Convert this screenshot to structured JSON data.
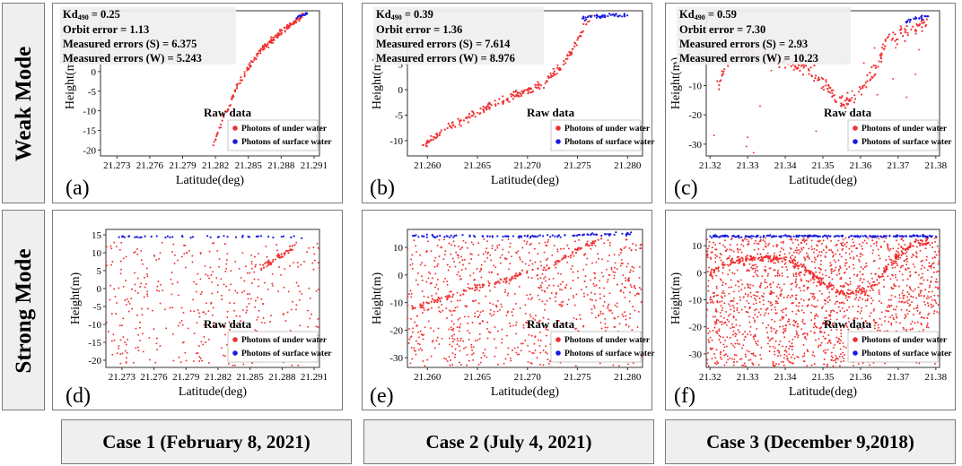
{
  "row_labels": [
    "Weak Mode",
    "Strong Mode"
  ],
  "case_labels": [
    "Case 1 (February  8, 2021)",
    "Case 2 (July 4, 2021)",
    "Case 3 (December 9,2018)"
  ],
  "colors": {
    "under_water": "#f03030",
    "surface_water": "#1a1adc",
    "frame": "#7a7a7a",
    "box_fill": "#efefef"
  },
  "chart_data": [
    {
      "type": "scatter",
      "panel_label": "(a)",
      "mode": "weak",
      "case": 1,
      "xlabel": "Latitude(deg)",
      "ylabel": "Height(m)",
      "xlim": [
        21.2715,
        21.2915
      ],
      "ylim": [
        -21.5,
        15.5
      ],
      "xticks": [
        "21.273",
        "21.276",
        "21.279",
        "21.282",
        "21.285",
        "21.288",
        "21.291"
      ],
      "yticks": [
        "-20",
        "-15",
        "-10",
        "-5",
        "0",
        "5"
      ],
      "stats": {
        "kd_label": "Kd",
        "kd_sub": "490",
        "kd_value": "= 0.25",
        "lines": [
          "Orbit error = 1.13",
          "Measured errors (S) = 6.375",
          "Measured errors (W) = 5.243"
        ]
      },
      "legend": {
        "title": "Raw data",
        "entries": [
          "Photons of under water",
          "Photons of surface water"
        ]
      },
      "under_water_path": [
        [
          21.2818,
          -19
        ],
        [
          21.2824,
          -14
        ],
        [
          21.2828,
          -11
        ],
        [
          21.2832,
          -9
        ],
        [
          21.2838,
          -5
        ],
        [
          21.2842,
          -3
        ],
        [
          21.2848,
          0
        ],
        [
          21.2856,
          3.5
        ],
        [
          21.2863,
          6
        ],
        [
          21.2872,
          8
        ],
        [
          21.288,
          10
        ],
        [
          21.2888,
          12
        ],
        [
          21.2896,
          13.5
        ],
        [
          21.2902,
          14.5
        ]
      ],
      "surface_path": [
        [
          21.2893,
          13.5
        ],
        [
          21.2898,
          14.2
        ],
        [
          21.2904,
          14.8
        ]
      ],
      "under_water_count": 180,
      "under_water_spread": 0.6,
      "surface_count": 18,
      "surface_spread": 0.3,
      "scattered_count": 0
    },
    {
      "type": "scatter",
      "panel_label": "(b)",
      "mode": "weak",
      "case": 2,
      "xlabel": "Latitude(deg)",
      "ylabel": "Height(m)",
      "xlim": [
        21.258,
        21.2815
      ],
      "ylim": [
        -13,
        15.5
      ],
      "xticks": [
        "21.260",
        "21.265",
        "21.270",
        "21.275",
        "21.280"
      ],
      "yticks": [
        "-10",
        "-5",
        "0",
        "5"
      ],
      "stats": {
        "kd_label": "Kd",
        "kd_sub": "490",
        "kd_value": "= 0.39",
        "lines": [
          "Orbit error = 1.36",
          "Measured errors (S) = 7.614",
          "Measured errors (W) = 8.976"
        ]
      },
      "legend": {
        "title": "Raw data",
        "entries": [
          "Photons of under water",
          "Photons of surface water"
        ]
      },
      "under_water_path": [
        [
          21.2595,
          -11
        ],
        [
          21.261,
          -9
        ],
        [
          21.263,
          -6.5
        ],
        [
          21.265,
          -4.5
        ],
        [
          21.267,
          -2.5
        ],
        [
          21.269,
          -1
        ],
        [
          21.2705,
          0
        ],
        [
          21.272,
          2
        ],
        [
          21.2735,
          5
        ],
        [
          21.2748,
          9
        ],
        [
          21.2758,
          12.5
        ],
        [
          21.2765,
          14
        ]
      ],
      "surface_path": [
        [
          21.2755,
          14
        ],
        [
          21.277,
          14.5
        ],
        [
          21.279,
          14.6
        ],
        [
          21.28,
          14.5
        ]
      ],
      "under_water_count": 210,
      "under_water_spread": 0.7,
      "surface_count": 50,
      "surface_spread": 0.35,
      "scattered_count": 0
    },
    {
      "type": "scatter",
      "panel_label": "(c)",
      "mode": "weak",
      "case": 3,
      "xlabel": "Latitude(deg)",
      "ylabel": "Height(m)",
      "xlim": [
        21.319,
        21.381
      ],
      "ylim": [
        -34,
        15.5
      ],
      "xticks": [
        "21.32",
        "21.33",
        "21.34",
        "21.35",
        "21.36",
        "21.37",
        "21.38"
      ],
      "yticks": [
        "-30",
        "-20",
        "-10",
        "0"
      ],
      "stats": {
        "kd_label": "Kd",
        "kd_sub": "490",
        "kd_value": "= 0.59",
        "lines": [
          "Orbit error = 7.30",
          "Measured errors (S) = 2.93",
          "Measured errors (W) = 10.23"
        ]
      },
      "legend": {
        "title": "Raw data",
        "entries": [
          "Photons of under water",
          "Photons of surface water"
        ]
      },
      "under_water_path": [
        [
          21.322,
          -10
        ],
        [
          21.325,
          -2
        ],
        [
          21.33,
          1
        ],
        [
          21.335,
          0
        ],
        [
          21.34,
          -2
        ],
        [
          21.345,
          -4
        ],
        [
          21.35,
          -9
        ],
        [
          21.355,
          -16
        ],
        [
          21.358,
          -14
        ],
        [
          21.361,
          -10
        ],
        [
          21.364,
          -4
        ],
        [
          21.367,
          5
        ],
        [
          21.371,
          8
        ],
        [
          21.375,
          10
        ],
        [
          21.378,
          12
        ]
      ],
      "surface_path": [
        [
          21.372,
          12
        ],
        [
          21.375,
          13
        ],
        [
          21.378,
          13.5
        ]
      ],
      "under_water_count": 260,
      "under_water_spread": 2.2,
      "surface_count": 22,
      "surface_spread": 0.6,
      "scattered_count": 30
    },
    {
      "type": "scatter",
      "panel_label": "(d)",
      "mode": "strong",
      "case": 1,
      "xlabel": "Latitude(deg)",
      "ylabel": "Height(m)",
      "xlim": [
        21.2715,
        21.2915
      ],
      "ylim": [
        -22,
        16.5
      ],
      "xticks": [
        "21.273",
        "21.276",
        "21.279",
        "21.282",
        "21.285",
        "21.288",
        "21.291"
      ],
      "yticks": [
        "-20",
        "-15",
        "-10",
        "-5",
        "0",
        "5",
        "10",
        "15"
      ],
      "stats": null,
      "legend": {
        "title": "Raw data",
        "entries": [
          "Photons of under water",
          "Photons of surface water"
        ]
      },
      "under_water_path": [
        [
          21.286,
          6
        ],
        [
          21.2872,
          8
        ],
        [
          21.2882,
          10
        ],
        [
          21.2892,
          12
        ]
      ],
      "surface_path": [
        [
          21.2725,
          14.5
        ],
        [
          21.2905,
          14.5
        ]
      ],
      "under_water_count": 40,
      "under_water_spread": 0.8,
      "surface_count": 45,
      "surface_spread": 0.35,
      "scattered_count": 420
    },
    {
      "type": "scatter",
      "panel_label": "(e)",
      "mode": "strong",
      "case": 2,
      "xlabel": "Latitude(deg)",
      "ylabel": "Height(m)",
      "xlim": [
        21.258,
        21.2815
      ],
      "ylim": [
        -33.5,
        16.5
      ],
      "xticks": [
        "21.260",
        "21.265",
        "21.270",
        "21.275",
        "21.280"
      ],
      "yticks": [
        "-30",
        "-20",
        "-10",
        "0",
        "10"
      ],
      "stats": null,
      "legend": {
        "title": "Raw data",
        "entries": [
          "Photons of under water",
          "Photons of surface water"
        ]
      },
      "under_water_path": [
        [
          21.2585,
          -12
        ],
        [
          21.261,
          -9
        ],
        [
          21.2635,
          -6
        ],
        [
          21.2655,
          -4
        ],
        [
          21.2675,
          -2
        ],
        [
          21.27,
          1
        ],
        [
          21.272,
          3
        ],
        [
          21.274,
          7
        ],
        [
          21.276,
          11
        ],
        [
          21.2775,
          13
        ]
      ],
      "surface_path": [
        [
          21.2585,
          14
        ],
        [
          21.272,
          14
        ],
        [
          21.276,
          14.6
        ],
        [
          21.2805,
          15
        ]
      ],
      "under_water_count": 120,
      "under_water_spread": 0.8,
      "surface_count": 110,
      "surface_spread": 0.45,
      "scattered_count": 900
    },
    {
      "type": "scatter",
      "panel_label": "(f)",
      "mode": "strong",
      "case": 3,
      "xlabel": "Latitude(deg)",
      "ylabel": "Height(m)",
      "xlim": [
        21.319,
        21.381
      ],
      "ylim": [
        -35,
        16
      ],
      "xticks": [
        "21.32",
        "21.33",
        "21.34",
        "21.35",
        "21.36",
        "21.37",
        "21.38"
      ],
      "yticks": [
        "-30",
        "-20",
        "-10",
        "0",
        "10"
      ],
      "stats": null,
      "legend": {
        "title": "Raw data",
        "entries": [
          "Photons of under water",
          "Photons of surface water"
        ]
      },
      "under_water_path": [
        [
          21.32,
          0
        ],
        [
          21.325,
          4
        ],
        [
          21.33,
          5
        ],
        [
          21.335,
          5.5
        ],
        [
          21.34,
          5
        ],
        [
          21.345,
          2
        ],
        [
          21.35,
          -4
        ],
        [
          21.355,
          -8
        ],
        [
          21.36,
          -7
        ],
        [
          21.364,
          -4
        ],
        [
          21.367,
          2
        ],
        [
          21.371,
          8
        ],
        [
          21.375,
          11
        ],
        [
          21.38,
          12
        ]
      ],
      "surface_path": [
        [
          21.32,
          13.5
        ],
        [
          21.38,
          13.5
        ]
      ],
      "under_water_count": 300,
      "under_water_spread": 1.2,
      "surface_count": 220,
      "surface_spread": 0.35,
      "scattered_count": 1700
    }
  ]
}
